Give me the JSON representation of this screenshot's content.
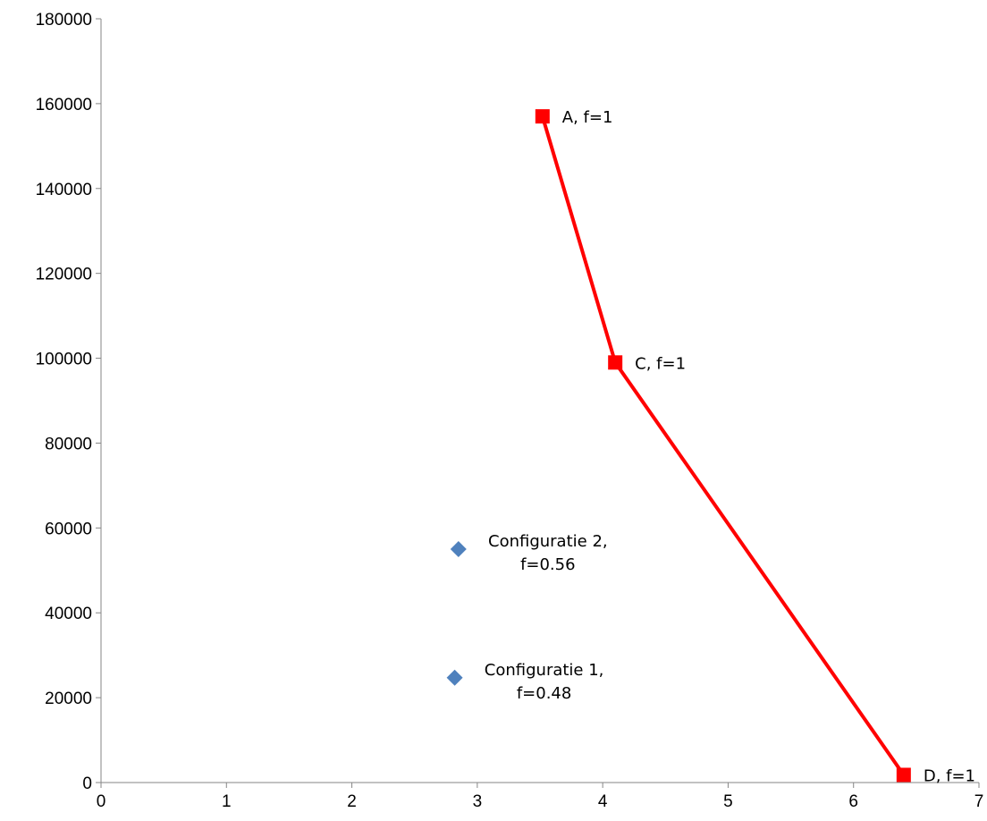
{
  "chart_data": {
    "type": "scatter",
    "title": "",
    "xlabel": "",
    "ylabel": "",
    "xlim": [
      0,
      7
    ],
    "ylim": [
      0,
      180000
    ],
    "x_ticks": [
      "0",
      "1",
      "2",
      "3",
      "4",
      "5",
      "6",
      "7"
    ],
    "y_ticks": [
      "0",
      "20000",
      "40000",
      "60000",
      "80000",
      "100000",
      "120000",
      "140000",
      "160000",
      "180000"
    ],
    "grid": false,
    "legend": "none",
    "series": [
      {
        "marker": "square",
        "color": "#ff0000",
        "connected": true,
        "points": [
          {
            "x": 3.52,
            "y": 157000,
            "label": "A, f=1"
          },
          {
            "x": 4.1,
            "y": 99000,
            "label": "C, f=1"
          },
          {
            "x": 6.4,
            "y": 1800,
            "label": "D, f=1"
          }
        ]
      },
      {
        "marker": "diamond",
        "color": "#4f81bd",
        "connected": false,
        "points": [
          {
            "x": 2.85,
            "y": 55000,
            "label": "Configuratie 2,\nf=0.56"
          },
          {
            "x": 2.82,
            "y": 24700,
            "label": "Configuratie 1,\nf=0.48"
          }
        ]
      }
    ]
  }
}
